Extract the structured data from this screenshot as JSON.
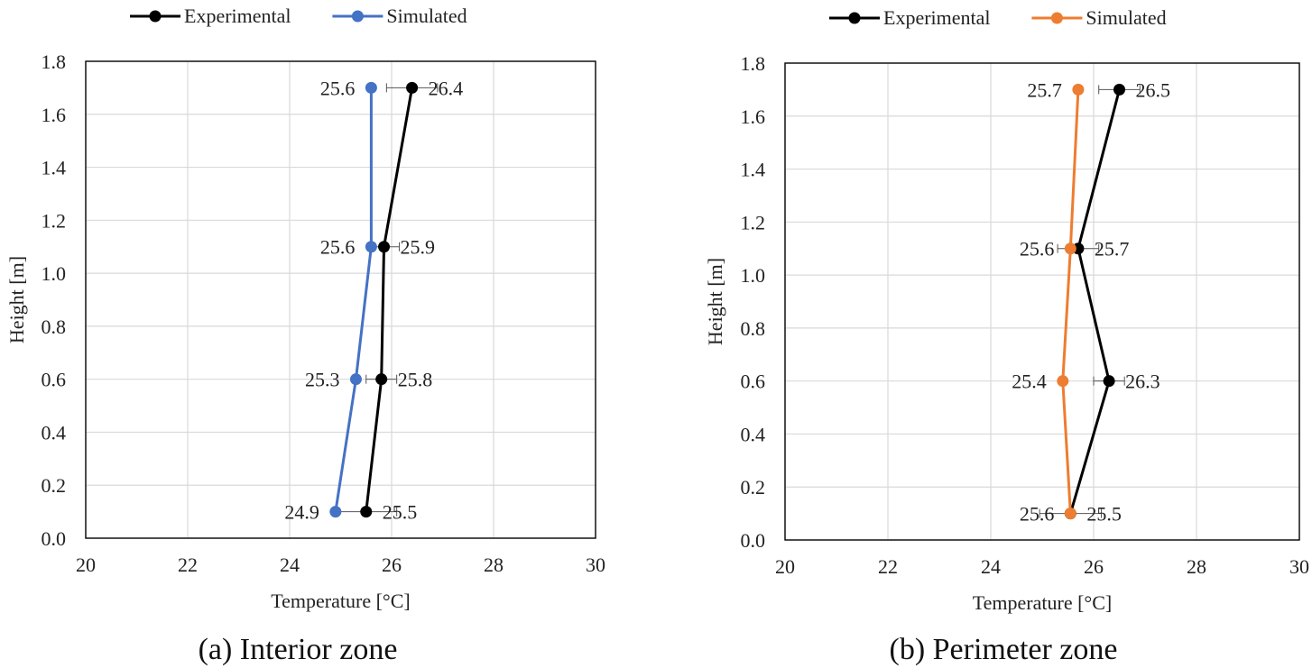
{
  "chart_data": [
    {
      "type": "line",
      "caption": "(a) Interior zone",
      "xlabel": "Temperature [°C]",
      "ylabel": "Height [m]",
      "xlim": [
        20,
        30
      ],
      "ylim": [
        0.0,
        1.8
      ],
      "xticks": [
        "20",
        "22",
        "24",
        "26",
        "28",
        "30"
      ],
      "yticks": [
        "0.0",
        "0.2",
        "0.4",
        "0.6",
        "0.8",
        "1.0",
        "1.2",
        "1.4",
        "1.6",
        "1.8"
      ],
      "grid": true,
      "legend": "top",
      "series": [
        {
          "name": "Experimental",
          "color": "#000000",
          "points": [
            {
              "x": 25.5,
              "y": 0.1,
              "label": "25.5",
              "err": 0.6
            },
            {
              "x": 25.8,
              "y": 0.6,
              "label": "25.8",
              "err": 0.3
            },
            {
              "x": 25.85,
              "y": 1.1,
              "label": "25.9",
              "err": 0.3
            },
            {
              "x": 26.4,
              "y": 1.7,
              "label": "26.4",
              "err": 0.5
            }
          ]
        },
        {
          "name": "Simulated",
          "color": "#4472C4",
          "points": [
            {
              "x": 24.9,
              "y": 0.1,
              "label": "24.9"
            },
            {
              "x": 25.3,
              "y": 0.6,
              "label": "25.3"
            },
            {
              "x": 25.6,
              "y": 1.1,
              "label": "25.6"
            },
            {
              "x": 25.6,
              "y": 1.7,
              "label": "25.6"
            }
          ]
        }
      ]
    },
    {
      "type": "line",
      "caption": "(b) Perimeter zone",
      "xlabel": "Temperature [°C]",
      "ylabel": "Height [m]",
      "xlim": [
        20,
        30
      ],
      "ylim": [
        0.0,
        1.8
      ],
      "xticks": [
        "20",
        "22",
        "24",
        "26",
        "28",
        "30"
      ],
      "yticks": [
        "0.0",
        "0.2",
        "0.4",
        "0.6",
        "0.8",
        "1.0",
        "1.2",
        "1.4",
        "1.6",
        "1.8"
      ],
      "grid": true,
      "legend": "top",
      "series": [
        {
          "name": "Experimental",
          "color": "#000000",
          "points": [
            {
              "x": 25.55,
              "y": 0.1,
              "label": "25.5",
              "err": 0.6
            },
            {
              "x": 26.3,
              "y": 0.6,
              "label": "26.3",
              "err": 0.3
            },
            {
              "x": 25.7,
              "y": 1.1,
              "label": "25.7",
              "err": 0.4
            },
            {
              "x": 26.5,
              "y": 1.7,
              "label": "26.5",
              "err": 0.4
            }
          ]
        },
        {
          "name": "Simulated",
          "color": "#ED7D31",
          "points": [
            {
              "x": 25.55,
              "y": 0.1,
              "label": "25.6"
            },
            {
              "x": 25.4,
              "y": 0.6,
              "label": "25.4"
            },
            {
              "x": 25.55,
              "y": 1.1,
              "label": "25.6"
            },
            {
              "x": 25.7,
              "y": 1.7,
              "label": "25.7"
            }
          ]
        }
      ]
    }
  ]
}
